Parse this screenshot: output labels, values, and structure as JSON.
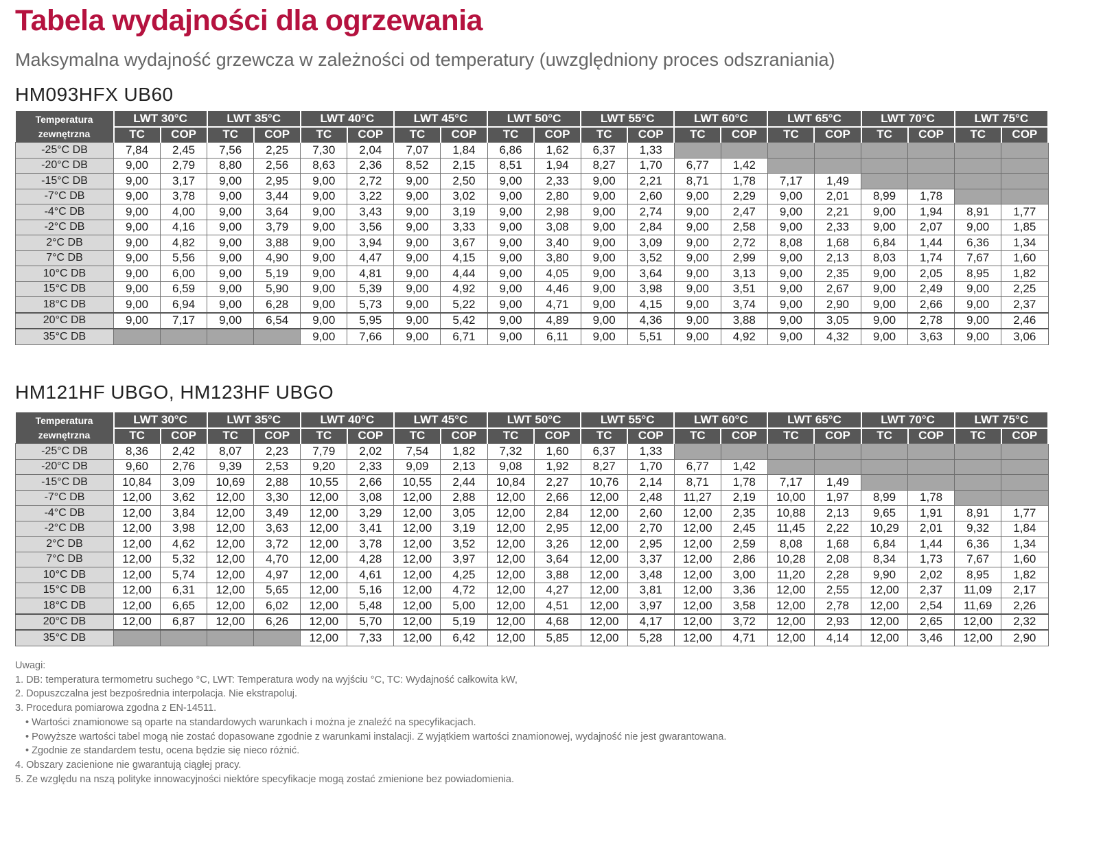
{
  "title": "Tabela wydajności dla ogrzewania",
  "subtitle": "Maksymalna wydajność grzewcza w zależności od temperatury (uwzględniony proces odszraniania)",
  "header": {
    "temp_label": "Temperatura zewnętrzna",
    "lwt": [
      "LWT 30°C",
      "LWT 35°C",
      "LWT 40°C",
      "LWT 45°C",
      "LWT 50°C",
      "LWT 55°C",
      "LWT 60°C",
      "LWT 65°C",
      "LWT 70°C",
      "LWT 75°C"
    ],
    "tc": "TC",
    "cop": "COP"
  },
  "tables": [
    {
      "model": "HM093HFX  UB60",
      "rows": [
        {
          "temp": "-25°C DB",
          "cells": [
            "7,84",
            "2,45",
            "7,56",
            "2,25",
            "7,30",
            "2,04",
            "7,07",
            "1,84",
            "6,86",
            "1,62",
            "6,37",
            "1,33",
            null,
            null,
            null,
            null,
            null,
            null,
            null,
            null
          ]
        },
        {
          "temp": "-20°C DB",
          "cells": [
            "9,00",
            "2,79",
            "8,80",
            "2,56",
            "8,63",
            "2,36",
            "8,52",
            "2,15",
            "8,51",
            "1,94",
            "8,27",
            "1,70",
            "6,77",
            "1,42",
            null,
            null,
            null,
            null,
            null,
            null
          ]
        },
        {
          "temp": "-15°C DB",
          "cells": [
            "9,00",
            "3,17",
            "9,00",
            "2,95",
            "9,00",
            "2,72",
            "9,00",
            "2,50",
            "9,00",
            "2,33",
            "9,00",
            "2,21",
            "8,71",
            "1,78",
            "7,17",
            "1,49",
            null,
            null,
            null,
            null
          ]
        },
        {
          "temp": "-7°C DB",
          "cells": [
            "9,00",
            "3,78",
            "9,00",
            "3,44",
            "9,00",
            "3,22",
            "9,00",
            "3,02",
            "9,00",
            "2,80",
            "9,00",
            "2,60",
            "9,00",
            "2,29",
            "9,00",
            "2,01",
            "8,99",
            "1,78",
            null,
            null
          ]
        },
        {
          "temp": "-4°C DB",
          "cells": [
            "9,00",
            "4,00",
            "9,00",
            "3,64",
            "9,00",
            "3,43",
            "9,00",
            "3,19",
            "9,00",
            "2,98",
            "9,00",
            "2,74",
            "9,00",
            "2,47",
            "9,00",
            "2,21",
            "9,00",
            "1,94",
            "8,91",
            "1,77"
          ]
        },
        {
          "temp": "-2°C DB",
          "cells": [
            "9,00",
            "4,16",
            "9,00",
            "3,79",
            "9,00",
            "3,56",
            "9,00",
            "3,33",
            "9,00",
            "3,08",
            "9,00",
            "2,84",
            "9,00",
            "2,58",
            "9,00",
            "2,33",
            "9,00",
            "2,07",
            "9,00",
            "1,85"
          ]
        },
        {
          "temp": "2°C DB",
          "cells": [
            "9,00",
            "4,82",
            "9,00",
            "3,88",
            "9,00",
            "3,94",
            "9,00",
            "3,67",
            "9,00",
            "3,40",
            "9,00",
            "3,09",
            "9,00",
            "2,72",
            "8,08",
            "1,68",
            "6,84",
            "1,44",
            "6,36",
            "1,34"
          ]
        },
        {
          "temp": "7°C DB",
          "cells": [
            "9,00",
            "5,56",
            "9,00",
            "4,90",
            "9,00",
            "4,47",
            "9,00",
            "4,15",
            "9,00",
            "3,80",
            "9,00",
            "3,52",
            "9,00",
            "2,99",
            "9,00",
            "2,13",
            "8,03",
            "1,74",
            "7,67",
            "1,60"
          ]
        },
        {
          "temp": "10°C DB",
          "cells": [
            "9,00",
            "6,00",
            "9,00",
            "5,19",
            "9,00",
            "4,81",
            "9,00",
            "4,44",
            "9,00",
            "4,05",
            "9,00",
            "3,64",
            "9,00",
            "3,13",
            "9,00",
            "2,35",
            "9,00",
            "2,05",
            "8,95",
            "1,82"
          ]
        },
        {
          "temp": "15°C DB",
          "cells": [
            "9,00",
            "6,59",
            "9,00",
            "5,90",
            "9,00",
            "5,39",
            "9,00",
            "4,92",
            "9,00",
            "4,46",
            "9,00",
            "3,98",
            "9,00",
            "3,51",
            "9,00",
            "2,67",
            "9,00",
            "2,49",
            "9,00",
            "2,25"
          ]
        },
        {
          "temp": "18°C DB",
          "cells": [
            "9,00",
            "6,94",
            "9,00",
            "6,28",
            "9,00",
            "5,73",
            "9,00",
            "5,22",
            "9,00",
            "4,71",
            "9,00",
            "4,15",
            "9,00",
            "3,74",
            "9,00",
            "2,90",
            "9,00",
            "2,66",
            "9,00",
            "2,37"
          ]
        },
        {
          "temp": "20°C DB",
          "cells": [
            "9,00",
            "7,17",
            "9,00",
            "6,54",
            "9,00",
            "5,95",
            "9,00",
            "5,42",
            "9,00",
            "4,89",
            "9,00",
            "4,36",
            "9,00",
            "3,88",
            "9,00",
            "3,05",
            "9,00",
            "2,78",
            "9,00",
            "2,46"
          ]
        },
        {
          "temp": "35°C DB",
          "cells": [
            null,
            null,
            null,
            null,
            "9,00",
            "7,66",
            "9,00",
            "6,71",
            "9,00",
            "6,11",
            "9,00",
            "5,51",
            "9,00",
            "4,92",
            "9,00",
            "4,32",
            "9,00",
            "3,63",
            "9,00",
            "3,06"
          ]
        }
      ]
    },
    {
      "model": "HM121HF UBGO, HM123HF UBGO",
      "rows": [
        {
          "temp": "-25°C DB",
          "cells": [
            "8,36",
            "2,42",
            "8,07",
            "2,23",
            "7,79",
            "2,02",
            "7,54",
            "1,82",
            "7,32",
            "1,60",
            "6,37",
            "1,33",
            null,
            null,
            null,
            null,
            null,
            null,
            null,
            null
          ]
        },
        {
          "temp": "-20°C DB",
          "cells": [
            "9,60",
            "2,76",
            "9,39",
            "2,53",
            "9,20",
            "2,33",
            "9,09",
            "2,13",
            "9,08",
            "1,92",
            "8,27",
            "1,70",
            "6,77",
            "1,42",
            null,
            null,
            null,
            null,
            null,
            null
          ]
        },
        {
          "temp": "-15°C DB",
          "cells": [
            "10,84",
            "3,09",
            "10,69",
            "2,88",
            "10,55",
            "2,66",
            "10,55",
            "2,44",
            "10,84",
            "2,27",
            "10,76",
            "2,14",
            "8,71",
            "1,78",
            "7,17",
            "1,49",
            null,
            null,
            null,
            null
          ]
        },
        {
          "temp": "-7°C DB",
          "cells": [
            "12,00",
            "3,62",
            "12,00",
            "3,30",
            "12,00",
            "3,08",
            "12,00",
            "2,88",
            "12,00",
            "2,66",
            "12,00",
            "2,48",
            "11,27",
            "2,19",
            "10,00",
            "1,97",
            "8,99",
            "1,78",
            null,
            null
          ]
        },
        {
          "temp": "-4°C DB",
          "cells": [
            "12,00",
            "3,84",
            "12,00",
            "3,49",
            "12,00",
            "3,29",
            "12,00",
            "3,05",
            "12,00",
            "2,84",
            "12,00",
            "2,60",
            "12,00",
            "2,35",
            "10,88",
            "2,13",
            "9,65",
            "1,91",
            "8,91",
            "1,77"
          ]
        },
        {
          "temp": "-2°C DB",
          "cells": [
            "12,00",
            "3,98",
            "12,00",
            "3,63",
            "12,00",
            "3,41",
            "12,00",
            "3,19",
            "12,00",
            "2,95",
            "12,00",
            "2,70",
            "12,00",
            "2,45",
            "11,45",
            "2,22",
            "10,29",
            "2,01",
            "9,32",
            "1,84"
          ]
        },
        {
          "temp": "2°C DB",
          "cells": [
            "12,00",
            "4,62",
            "12,00",
            "3,72",
            "12,00",
            "3,78",
            "12,00",
            "3,52",
            "12,00",
            "3,26",
            "12,00",
            "2,95",
            "12,00",
            "2,59",
            "8,08",
            "1,68",
            "6,84",
            "1,44",
            "6,36",
            "1,34"
          ]
        },
        {
          "temp": "7°C DB",
          "cells": [
            "12,00",
            "5,32",
            "12,00",
            "4,70",
            "12,00",
            "4,28",
            "12,00",
            "3,97",
            "12,00",
            "3,64",
            "12,00",
            "3,37",
            "12,00",
            "2,86",
            "10,28",
            "2,08",
            "8,34",
            "1,73",
            "7,67",
            "1,60"
          ]
        },
        {
          "temp": "10°C DB",
          "cells": [
            "12,00",
            "5,74",
            "12,00",
            "4,97",
            "12,00",
            "4,61",
            "12,00",
            "4,25",
            "12,00",
            "3,88",
            "12,00",
            "3,48",
            "12,00",
            "3,00",
            "11,20",
            "2,28",
            "9,90",
            "2,02",
            "8,95",
            "1,82"
          ]
        },
        {
          "temp": "15°C DB",
          "cells": [
            "12,00",
            "6,31",
            "12,00",
            "5,65",
            "12,00",
            "5,16",
            "12,00",
            "4,72",
            "12,00",
            "4,27",
            "12,00",
            "3,81",
            "12,00",
            "3,36",
            "12,00",
            "2,55",
            "12,00",
            "2,37",
            "11,09",
            "2,17"
          ]
        },
        {
          "temp": "18°C DB",
          "cells": [
            "12,00",
            "6,65",
            "12,00",
            "6,02",
            "12,00",
            "5,48",
            "12,00",
            "5,00",
            "12,00",
            "4,51",
            "12,00",
            "3,97",
            "12,00",
            "3,58",
            "12,00",
            "2,78",
            "12,00",
            "2,54",
            "11,69",
            "2,26"
          ]
        },
        {
          "temp": "20°C DB",
          "cells": [
            "12,00",
            "6,87",
            "12,00",
            "6,26",
            "12,00",
            "5,70",
            "12,00",
            "5,19",
            "12,00",
            "4,68",
            "12,00",
            "4,17",
            "12,00",
            "3,72",
            "12,00",
            "2,93",
            "12,00",
            "2,65",
            "12,00",
            "2,32"
          ]
        },
        {
          "temp": "35°C DB",
          "cells": [
            null,
            null,
            null,
            null,
            "12,00",
            "7,33",
            "12,00",
            "6,42",
            "12,00",
            "5,85",
            "12,00",
            "5,28",
            "12,00",
            "4,71",
            "12,00",
            "4,14",
            "12,00",
            "3,46",
            "12,00",
            "2,90"
          ]
        }
      ]
    }
  ],
  "notes": {
    "heading": "Uwagi:",
    "items": [
      {
        "text": "1. DB: temperatura termometru suchego °C, LWT: Temperatura wody na wyjściu °C, TC: Wydajność całkowita kW,",
        "indent": false
      },
      {
        "text": "2. Dopuszczalna jest bezpośrednia interpolacja. Nie ekstrapoluj.",
        "indent": false
      },
      {
        "text": "3. Procedura pomiarowa zgodna z EN-14511.",
        "indent": false
      },
      {
        "text": "• Wartości znamionowe są oparte na standardowych warunkach i można je znaleźć na specyfikacjach.",
        "indent": true
      },
      {
        "text": "• Powyższe wartości tabel mogą nie zostać dopasowane zgodnie z warunkami instalacji. Z wyjątkiem wartości znamionowej, wydajność nie jest gwarantowana.",
        "indent": true
      },
      {
        "text": "• Zgodnie ze standardem testu, ocena będzie się nieco różnić.",
        "indent": true
      },
      {
        "text": "4. Obszary zacienione nie gwarantują ciągłej pracy.",
        "indent": false
      },
      {
        "text": "5. Ze względu na nszą polityke innowacyjności niektóre specyfikacje mogą zostać zmienione bez powiadomienia.",
        "indent": false
      }
    ]
  }
}
